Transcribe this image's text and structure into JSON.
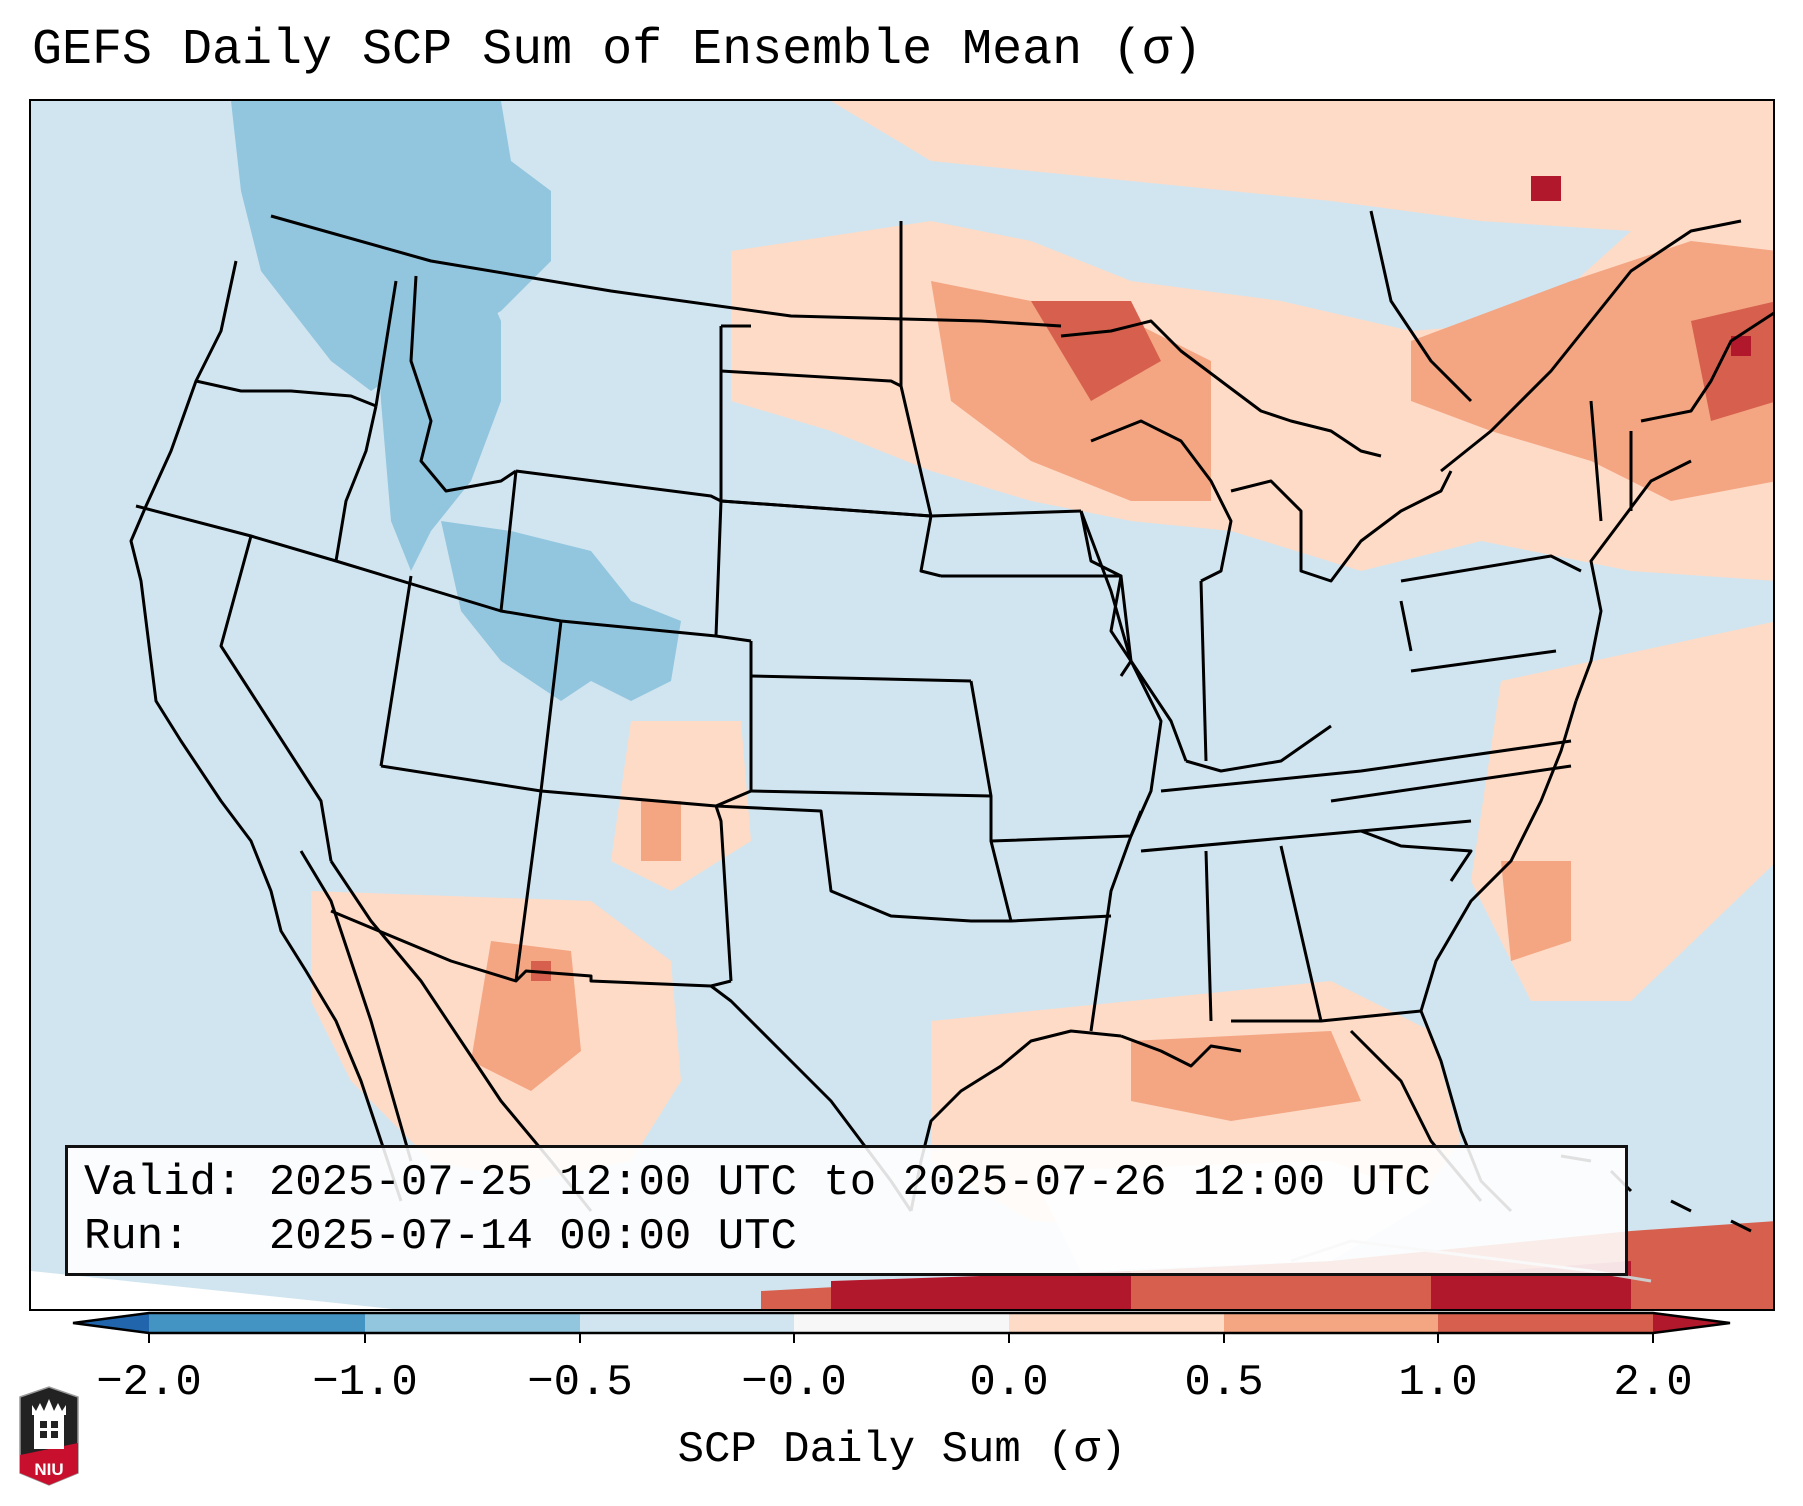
{
  "title": "GEFS Daily SCP Sum of Ensemble Mean (σ)",
  "info": {
    "valid_label": "Valid:",
    "valid_value": "2025-07-25 12:00 UTC to 2025-07-26 12:00 UTC",
    "run_label": "Run:  ",
    "run_value": "2025-07-14 00:00 UTC"
  },
  "colorbar": {
    "label": "SCP Daily Sum (σ)",
    "ticks": [
      "−2.0",
      "−1.0",
      "−0.5",
      "−0.0",
      "0.0",
      "0.5",
      "1.0",
      "2.0"
    ],
    "bins": [
      {
        "range": "< -2.0",
        "color": "#2166ac"
      },
      {
        "range": "-2.0 to -1.0",
        "color": "#4393c3"
      },
      {
        "range": "-1.0 to -0.5",
        "color": "#92c5de"
      },
      {
        "range": "-0.5 to -0.0",
        "color": "#d1e5f0"
      },
      {
        "range": "-0.0 to 0.0",
        "color": "#f7f7f7"
      },
      {
        "range": "0.0 to 0.5",
        "color": "#fddbc7"
      },
      {
        "range": "0.5 to 1.0",
        "color": "#f4a582"
      },
      {
        "range": "1.0 to 2.0",
        "color": "#d6604d"
      },
      {
        "range": "> 2.0",
        "color": "#b2182b"
      }
    ],
    "extend": "both"
  },
  "map": {
    "region": "Continental United States",
    "background_bin": "-0.5 to -0.0",
    "features": [
      "state borders",
      "coastlines",
      "great lakes",
      "mexico",
      "canada",
      "caribbean"
    ]
  },
  "logo": {
    "text": "NIU",
    "name": "Northern Illinois University"
  },
  "chart_data": {
    "type": "heatmap",
    "title": "GEFS Daily SCP Sum of Ensemble Mean (σ)",
    "colorbar_label": "SCP Daily Sum (σ)",
    "levels": [
      -2.0,
      -1.0,
      -0.5,
      -0.0,
      0.0,
      0.5,
      1.0,
      2.0
    ],
    "extend": "both",
    "regions": [
      {
        "area": "Northern Rockies / Idaho / Montana",
        "range": "-1.0 to -0.5"
      },
      {
        "area": "Utah / Colorado",
        "range": "-1.0 to -0.5"
      },
      {
        "area": "Upper Midwest / Great Lakes",
        "range": "0.5 to 2.0"
      },
      {
        "area": "Southern Ontario / Quebec",
        "range": "0.5 to 2.0"
      },
      {
        "area": "New England / Gulf of Maine",
        "range": "0.5 to 2.0"
      },
      {
        "area": "Northern Mexico (Sonora/Chihuahua)",
        "range": "0.0 to 1.0"
      },
      {
        "area": "Gulf of Mexico",
        "range": "0.0 to 1.0"
      },
      {
        "area": "Caribbean south of Cuba",
        "range": "1.0 to >2.0"
      },
      {
        "area": "Central / Southeast US",
        "range": "-0.5 to -0.0"
      }
    ]
  }
}
